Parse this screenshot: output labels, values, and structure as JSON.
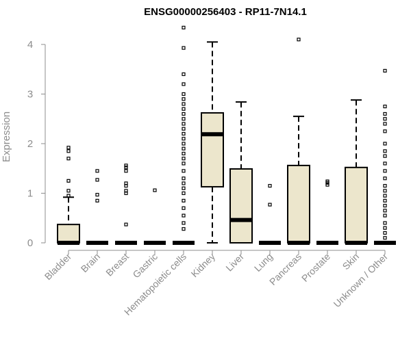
{
  "colors": {
    "box_fill": "#ece6cc",
    "box_stroke": "#000000",
    "axis": "#8c8c8c"
  },
  "chart_data": {
    "type": "boxplot",
    "title": "ENSG00000256403 - RP11-7N14.1",
    "xlabel": "",
    "ylabel": "Expression",
    "ylim": [
      0,
      4.3
    ],
    "yticks": [
      0,
      1,
      2,
      3,
      4
    ],
    "categories": [
      "Bladder",
      "Brain",
      "Breast",
      "Gastric",
      "Hematopoietic cells",
      "Kidney",
      "Liver",
      "Lung",
      "Pancreas",
      "Prostate",
      "Skin",
      "Unknown / Other"
    ],
    "boxes": [
      {
        "name": "Bladder",
        "min": 0,
        "q1": 0,
        "median": 0,
        "q3": 0.37,
        "max": 0.92,
        "outliers": [
          0.95,
          1.05,
          1.25,
          1.7,
          1.85,
          1.92
        ]
      },
      {
        "name": "Brain",
        "min": 0,
        "q1": 0,
        "median": 0,
        "q3": 0,
        "max": 0,
        "outliers": [
          0.85,
          0.97,
          1.27,
          1.45
        ]
      },
      {
        "name": "Breast",
        "min": 0,
        "q1": 0,
        "median": 0,
        "q3": 0,
        "max": 0,
        "outliers": [
          0.37,
          1.0,
          1.05,
          1.15,
          1.2,
          1.45,
          1.52,
          1.56
        ]
      },
      {
        "name": "Gastric",
        "min": 0,
        "q1": 0,
        "median": 0,
        "q3": 0,
        "max": 0,
        "outliers": [
          1.06
        ]
      },
      {
        "name": "Hematopoietic cells",
        "min": 0,
        "q1": 0,
        "median": 0,
        "q3": 0,
        "max": 0,
        "outliers": [
          0.28,
          0.4,
          0.55,
          0.7,
          0.85,
          1.0,
          1.1,
          1.2,
          1.3,
          1.45,
          1.6,
          1.7,
          1.8,
          1.9,
          2.0,
          2.1,
          2.2,
          2.3,
          2.4,
          2.5,
          2.6,
          2.7,
          2.8,
          2.9,
          3.0,
          3.2,
          3.4,
          3.93,
          4.34
        ]
      },
      {
        "name": "Kidney",
        "min": 0,
        "q1": 1.13,
        "median": 2.19,
        "q3": 2.62,
        "max": 4.05,
        "outliers": []
      },
      {
        "name": "Liver",
        "min": 0,
        "q1": 0,
        "median": 0.46,
        "q3": 1.49,
        "max": 2.84,
        "outliers": []
      },
      {
        "name": "Lung",
        "min": 0,
        "q1": 0,
        "median": 0,
        "q3": 0,
        "max": 0,
        "outliers": [
          0.77,
          1.15
        ]
      },
      {
        "name": "Pancreas",
        "min": 0,
        "q1": 0,
        "median": 0,
        "q3": 1.56,
        "max": 2.55,
        "outliers": [
          4.1
        ]
      },
      {
        "name": "Prostate",
        "min": 0,
        "q1": 0,
        "median": 0,
        "q3": 0,
        "max": 0,
        "outliers": [
          1.17,
          1.21,
          1.24
        ]
      },
      {
        "name": "Skin",
        "min": 0,
        "q1": 0,
        "median": 0,
        "q3": 1.52,
        "max": 2.88,
        "outliers": []
      },
      {
        "name": "Unknown / Other",
        "min": 0,
        "q1": 0,
        "median": 0,
        "q3": 0,
        "max": 0,
        "outliers": [
          0.1,
          0.2,
          0.3,
          0.4,
          0.55,
          0.65,
          0.75,
          0.85,
          0.95,
          1.05,
          1.15,
          1.3,
          1.45,
          1.6,
          1.75,
          1.85,
          2.0,
          2.25,
          2.4,
          2.5,
          2.6,
          2.75,
          3.47
        ]
      }
    ]
  }
}
